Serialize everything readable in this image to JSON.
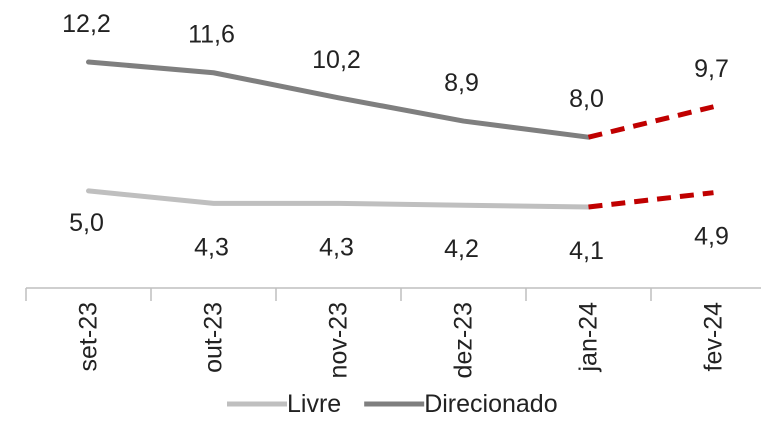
{
  "chart_data": {
    "type": "line",
    "categories": [
      "set-23",
      "out-23",
      "nov-23",
      "dez-23",
      "jan-24",
      "fev-24"
    ],
    "series": [
      {
        "name": "Livre",
        "values": [
          5.0,
          4.3,
          4.3,
          4.2,
          4.1,
          4.9
        ],
        "labels": [
          "5,0",
          "4,3",
          "4,3",
          "4,2",
          "4,1",
          "4,9"
        ],
        "color": "#bfbfbf"
      },
      {
        "name": "Direcionado",
        "values": [
          12.2,
          11.6,
          10.2,
          8.9,
          8.0,
          9.7
        ],
        "labels": [
          "12,2",
          "11,6",
          "10,2",
          "8,9",
          "8,0",
          "9,7"
        ],
        "color": "#7f7f7f"
      }
    ],
    "projection": {
      "from_index": 4,
      "to_index": 5,
      "color": "#c00000",
      "style": "dashed"
    },
    "legend_position": "bottom",
    "grid": false,
    "title": "",
    "xlabel": "",
    "ylabel": ""
  }
}
